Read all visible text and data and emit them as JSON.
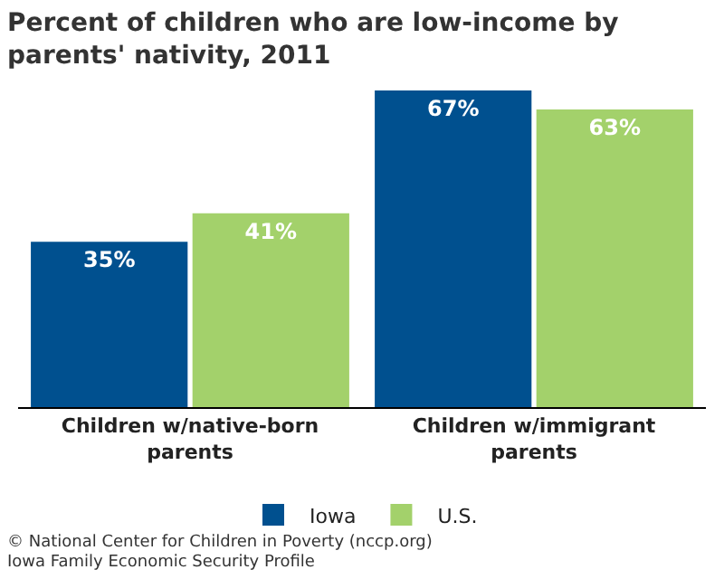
{
  "chart_data": {
    "type": "bar",
    "title": "Percent of children who are low-income by parents' nativity, 2011",
    "categories": [
      "Children w/native-born parents",
      "Children w/immigrant parents"
    ],
    "series": [
      {
        "name": "Iowa",
        "color": "#00508f",
        "values": [
          35,
          67
        ],
        "value_labels": [
          "35%",
          "67%"
        ]
      },
      {
        "name": "U.S.",
        "color": "#a3d16b",
        "values": [
          41,
          63
        ],
        "value_labels": [
          "41%",
          "63%"
        ]
      }
    ],
    "legend": "bottom",
    "annotations": [
      "© National Center for Children in Poverty (nccp.org)",
      "Iowa Family Economic Security Profile"
    ]
  }
}
